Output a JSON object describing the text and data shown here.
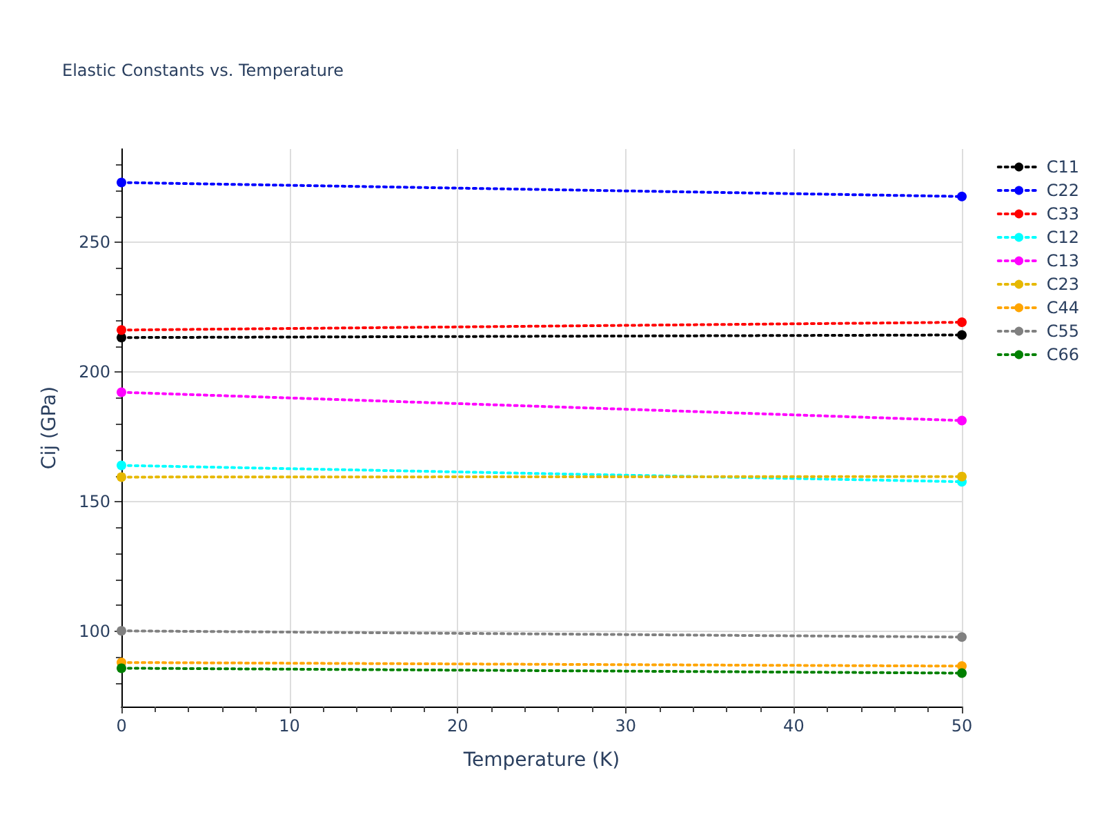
{
  "chart_data": {
    "type": "line",
    "title": "Elastic Constants vs. Temperature",
    "xlabel": "Temperature (K)",
    "ylabel": "Cij (GPa)",
    "x": [
      0,
      50
    ],
    "series": [
      {
        "name": "C11",
        "color": "#000000",
        "values": [
          213.3,
          214.3
        ]
      },
      {
        "name": "C22",
        "color": "#0000ff",
        "values": [
          273.1,
          267.7
        ]
      },
      {
        "name": "C33",
        "color": "#ff0000",
        "values": [
          216.2,
          219.2
        ]
      },
      {
        "name": "C12",
        "color": "#00ffff",
        "values": [
          164.0,
          157.7
        ]
      },
      {
        "name": "C13",
        "color": "#ff00ff",
        "values": [
          192.2,
          181.3
        ]
      },
      {
        "name": "C23",
        "color": "#e6b800",
        "values": [
          159.5,
          159.7
        ]
      },
      {
        "name": "C44",
        "color": "#ffa500",
        "values": [
          88.0,
          86.6
        ]
      },
      {
        "name": "C55",
        "color": "#808080",
        "values": [
          100.2,
          97.8
        ]
      },
      {
        "name": "C66",
        "color": "#008000",
        "values": [
          85.8,
          83.9
        ]
      }
    ],
    "xlim": [
      0,
      50
    ],
    "xticks": [
      0,
      {
        "value": 2,
        "label": null
      },
      {
        "value": 4,
        "label": null
      },
      {
        "value": 6,
        "label": null
      },
      {
        "value": 8,
        "label": null
      },
      10,
      {
        "value": 12,
        "label": null
      },
      {
        "value": 14,
        "label": null
      },
      {
        "value": 16,
        "label": null
      },
      {
        "value": 18,
        "label": null
      },
      20,
      {
        "value": 22,
        "label": null
      },
      {
        "value": 24,
        "label": null
      },
      {
        "value": 26,
        "label": null
      },
      {
        "value": 28,
        "label": null
      },
      30,
      {
        "value": 32,
        "label": null
      },
      {
        "value": 34,
        "label": null
      },
      {
        "value": 36,
        "label": null
      },
      {
        "value": 38,
        "label": null
      },
      40,
      {
        "value": 42,
        "label": null
      },
      {
        "value": 44,
        "label": null
      },
      {
        "value": 46,
        "label": null
      },
      {
        "value": 48,
        "label": null
      },
      50
    ],
    "ylim": [
      71,
      286
    ],
    "yticks": [
      {
        "value": 80,
        "label": null
      },
      {
        "value": 90,
        "label": null
      },
      100,
      {
        "value": 110,
        "label": null
      },
      {
        "value": 120,
        "label": null
      },
      {
        "value": 130,
        "label": null
      },
      {
        "value": 140,
        "label": null
      },
      150,
      {
        "value": 160,
        "label": null
      },
      {
        "value": 170,
        "label": null
      },
      {
        "value": 180,
        "label": null
      },
      {
        "value": 190,
        "label": null
      },
      200,
      {
        "value": 210,
        "label": null
      },
      {
        "value": 220,
        "label": null
      },
      {
        "value": 230,
        "label": null
      },
      {
        "value": 240,
        "label": null
      },
      250,
      {
        "value": 260,
        "label": null
      },
      {
        "value": 270,
        "label": null
      },
      {
        "value": 280,
        "label": null
      }
    ],
    "grid": true,
    "legend": "top right",
    "marker": "circle",
    "line_style": "dotted"
  }
}
